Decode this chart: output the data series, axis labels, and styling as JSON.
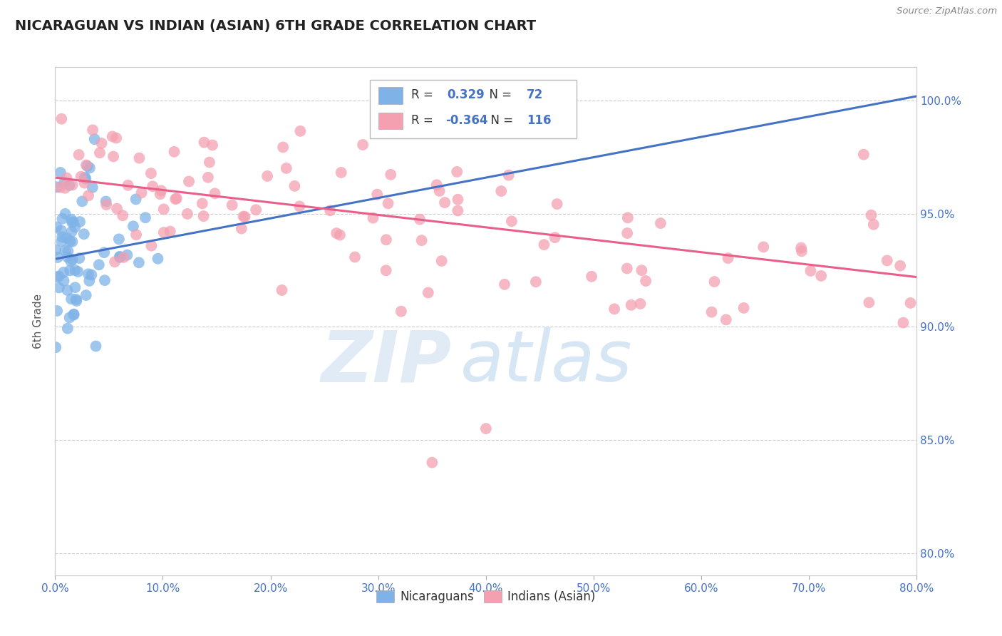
{
  "title": "NICARAGUAN VS INDIAN (ASIAN) 6TH GRADE CORRELATION CHART",
  "source_text": "Source: ZipAtlas.com",
  "xlabel": "",
  "ylabel": "6th Grade",
  "watermark_zip": "ZIP",
  "watermark_atlas": "atlas",
  "legend_label_blue": "Nicaraguans",
  "legend_label_pink": "Indians (Asian)",
  "R_blue": 0.329,
  "N_blue": 72,
  "R_pink": -0.364,
  "N_pink": 116,
  "x_min": 0.0,
  "x_max": 80.0,
  "y_min": 79.0,
  "y_max": 101.5,
  "y_ticks": [
    80.0,
    85.0,
    90.0,
    95.0,
    100.0
  ],
  "x_ticks": [
    0.0,
    10.0,
    20.0,
    30.0,
    40.0,
    50.0,
    60.0,
    70.0,
    80.0
  ],
  "color_blue": "#7FB3E8",
  "color_pink": "#F4A0B0",
  "line_color_blue": "#4472C4",
  "line_color_pink": "#E8608A",
  "background_color": "#FFFFFF",
  "blue_line_x0": 0.0,
  "blue_line_y0": 93.0,
  "blue_line_x1": 80.0,
  "blue_line_y1": 100.2,
  "pink_line_x0": 0.0,
  "pink_line_y0": 96.6,
  "pink_line_x1": 80.0,
  "pink_line_y1": 92.2
}
